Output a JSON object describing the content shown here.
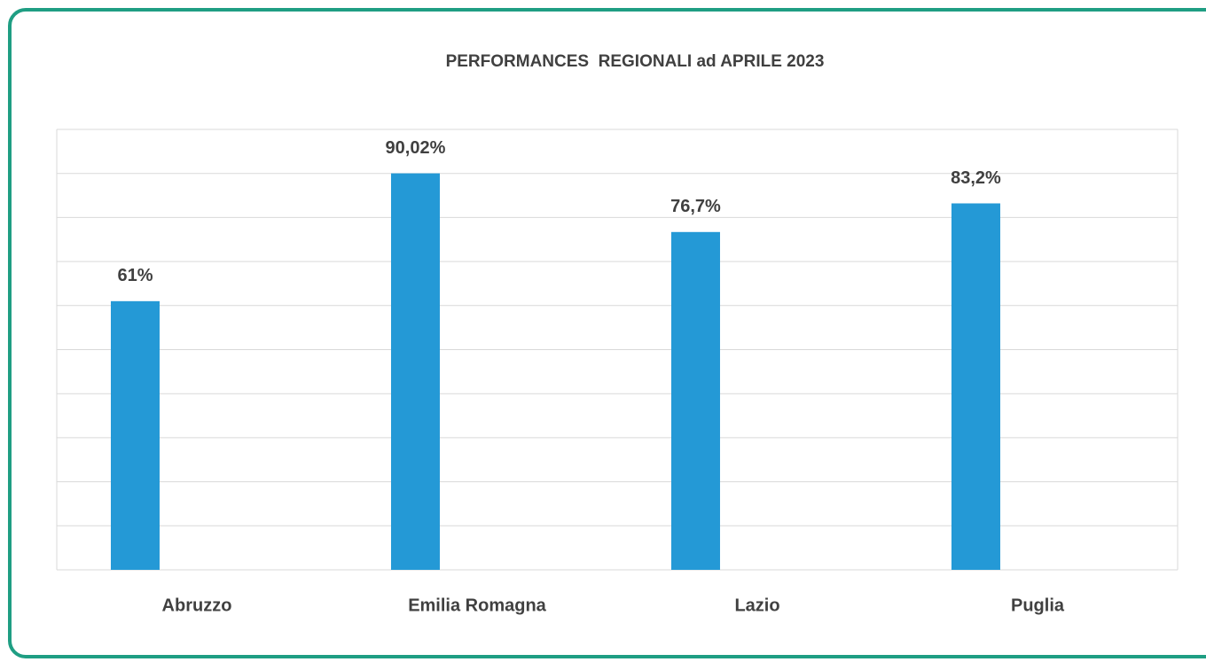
{
  "chart_data": {
    "type": "bar",
    "title": "PERFORMANCES  REGIONALI ad APRILE 2023",
    "categories": [
      "Abruzzo",
      "Emilia Romagna",
      "Lazio",
      "Puglia"
    ],
    "values": [
      61,
      90.02,
      76.7,
      83.2
    ],
    "value_labels": [
      "61%",
      "90,02%",
      "76,7%",
      "83,2%"
    ],
    "color": "#2499d6",
    "ylim": [
      0,
      100
    ],
    "yticks": [
      0,
      10,
      20,
      30,
      40,
      50,
      60,
      70,
      80,
      90,
      100
    ],
    "grid": true
  }
}
